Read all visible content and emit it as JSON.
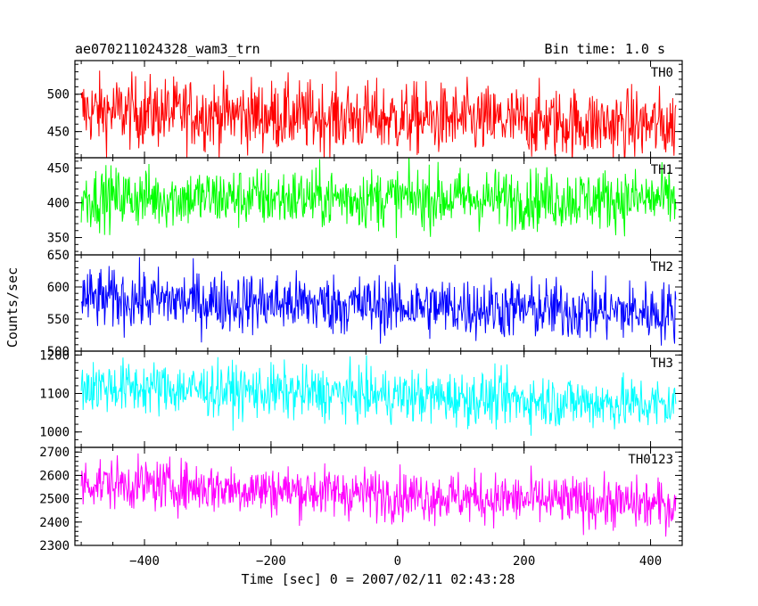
{
  "header": {
    "title": "ae070211024328_wam3_trn",
    "bin_time": "Bin time: 1.0 s"
  },
  "chart_data": {
    "type": "line",
    "xlabel": "Time [sec] 0 = 2007/02/11 02:43:28",
    "ylabel": "Counts/sec",
    "xlim": [
      -510,
      450
    ],
    "x_range": [
      -500,
      440
    ],
    "xticks": [
      -400,
      -200,
      0,
      200,
      400
    ],
    "xtick_labels": [
      "−400",
      "−200",
      "0",
      "200",
      "400"
    ],
    "panels": [
      {
        "name": "TH0",
        "color": "#ff0000",
        "ylim": [
          415,
          545
        ],
        "yticks": [
          450,
          500
        ],
        "mean_start": 478,
        "mean_end": 458,
        "noise": 24
      },
      {
        "name": "TH1",
        "color": "#00ff00",
        "ylim": [
          325,
          465
        ],
        "yticks": [
          350,
          400,
          450
        ],
        "mean_start": 408,
        "mean_end": 405,
        "noise": 22
      },
      {
        "name": "TH2",
        "color": "#0000ff",
        "ylim": [
          500,
          650
        ],
        "yticks": [
          500,
          550,
          600,
          650
        ],
        "mean_start": 582,
        "mean_end": 560,
        "noise": 24
      },
      {
        "name": "TH3",
        "color": "#00ffff",
        "ylim": [
          960,
          1210
        ],
        "yticks": [
          1000,
          1100,
          1200
        ],
        "mean_start": 1120,
        "mean_end": 1070,
        "noise": 35
      },
      {
        "name": "TH0123",
        "color": "#ff00ff",
        "ylim": [
          2300,
          2720
        ],
        "yticks": [
          2300,
          2400,
          2500,
          2600,
          2700
        ],
        "mean_start": 2570,
        "mean_end": 2470,
        "noise": 55
      }
    ]
  }
}
